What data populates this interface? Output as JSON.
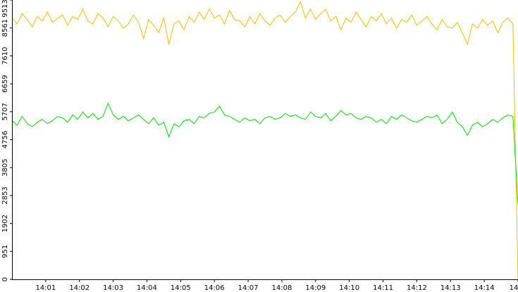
{
  "chart_data": {
    "type": "line",
    "x": [
      0,
      9,
      18,
      27,
      36,
      45,
      54,
      63,
      72,
      81,
      90,
      99,
      108,
      117,
      126,
      135,
      144,
      153,
      162,
      171,
      180,
      189,
      198,
      207,
      216,
      225,
      234,
      243,
      252,
      261,
      270,
      279,
      288,
      297,
      306,
      315,
      324,
      333,
      342,
      351,
      360,
      369,
      378,
      387,
      396,
      405,
      414,
      423,
      432,
      441,
      450,
      459,
      468,
      477,
      486,
      495,
      504,
      513,
      522,
      531,
      540,
      549,
      558,
      567,
      576,
      585,
      594,
      603,
      612,
      621,
      630,
      639,
      648,
      657,
      666,
      675,
      684,
      693,
      702,
      711,
      720,
      729,
      738,
      747,
      756,
      765,
      774,
      783,
      792,
      801,
      810,
      819,
      828,
      837,
      846,
      855,
      864,
      873,
      882,
      891,
      900
    ],
    "series": [
      {
        "color": "#f2bd00",
        "values": [
          8900,
          8700,
          9050,
          8850,
          8600,
          8950,
          8800,
          9100,
          8750,
          8900,
          9000,
          8650,
          8950,
          8850,
          9200,
          8800,
          8700,
          9050,
          8900,
          8600,
          8950,
          8800,
          8550,
          8700,
          9000,
          8750,
          8200,
          8850,
          8650,
          8400,
          8900,
          8000,
          8700,
          8800,
          8500,
          8950,
          8750,
          9100,
          8850,
          9200,
          8900,
          9000,
          8700,
          9150,
          8850,
          8800,
          8600,
          8950,
          8700,
          9050,
          8800,
          8650,
          8900,
          9000,
          8750,
          8950,
          9100,
          9450,
          8900,
          9200,
          8850,
          9050,
          9200,
          8800,
          8950,
          8500,
          8900,
          8750,
          9100,
          8850,
          8600,
          8950,
          8800,
          9050,
          8700,
          8900,
          8550,
          8850,
          8750,
          9000,
          8650,
          8800,
          8950,
          8700,
          8500,
          8850,
          8600,
          8550,
          8750,
          8400,
          8000,
          8700,
          8550,
          8850,
          8650,
          8800,
          8400,
          8750,
          8900,
          8700,
          0
        ]
      },
      {
        "color": "#00e000",
        "values": [
          5400,
          5250,
          5550,
          5300,
          5200,
          5350,
          5450,
          5300,
          5400,
          5550,
          5500,
          5350,
          5600,
          5450,
          5700,
          5500,
          5650,
          5450,
          5550,
          6000,
          5600,
          5450,
          5550,
          5400,
          5500,
          5600,
          5450,
          5300,
          5500,
          5250,
          5350,
          4850,
          5300,
          5200,
          5400,
          5450,
          5300,
          5550,
          5500,
          5650,
          5700,
          5900,
          5600,
          5550,
          5450,
          5350,
          5500,
          5400,
          5450,
          5300,
          5500,
          5550,
          5450,
          5500,
          5650,
          5550,
          5600,
          5500,
          5450,
          5700,
          5550,
          5500,
          5650,
          5400,
          5550,
          5750,
          5600,
          5650,
          5500,
          5450,
          5550,
          5500,
          5350,
          5450,
          5300,
          5550,
          5450,
          5600,
          5500,
          5400,
          5350,
          5450,
          5550,
          5500,
          5600,
          5300,
          5450,
          5700,
          5350,
          5200,
          4900,
          5250,
          5350,
          5200,
          5300,
          5450,
          5350,
          5500,
          5600,
          5550,
          2560
        ]
      }
    ],
    "xlim": [
      0,
      900
    ],
    "xticks": [
      {
        "value": 60,
        "label": "14:01"
      },
      {
        "value": 120,
        "label": "14:02"
      },
      {
        "value": 180,
        "label": "14:03"
      },
      {
        "value": 240,
        "label": "14:04"
      },
      {
        "value": 300,
        "label": "14:05"
      },
      {
        "value": 360,
        "label": "14:06"
      },
      {
        "value": 420,
        "label": "14:07"
      },
      {
        "value": 480,
        "label": "14:08"
      },
      {
        "value": 540,
        "label": "14:09"
      },
      {
        "value": 600,
        "label": "14:10"
      },
      {
        "value": 660,
        "label": "14:11"
      },
      {
        "value": 720,
        "label": "14:12"
      },
      {
        "value": 780,
        "label": "14:13"
      },
      {
        "value": 840,
        "label": "14:14"
      },
      {
        "value": 900,
        "label": "14"
      }
    ],
    "ylim": [
      0,
      9513
    ],
    "yticks": [
      0,
      951,
      1902,
      2853,
      3805,
      4756,
      5707,
      6659,
      7610,
      8561,
      9513
    ]
  }
}
